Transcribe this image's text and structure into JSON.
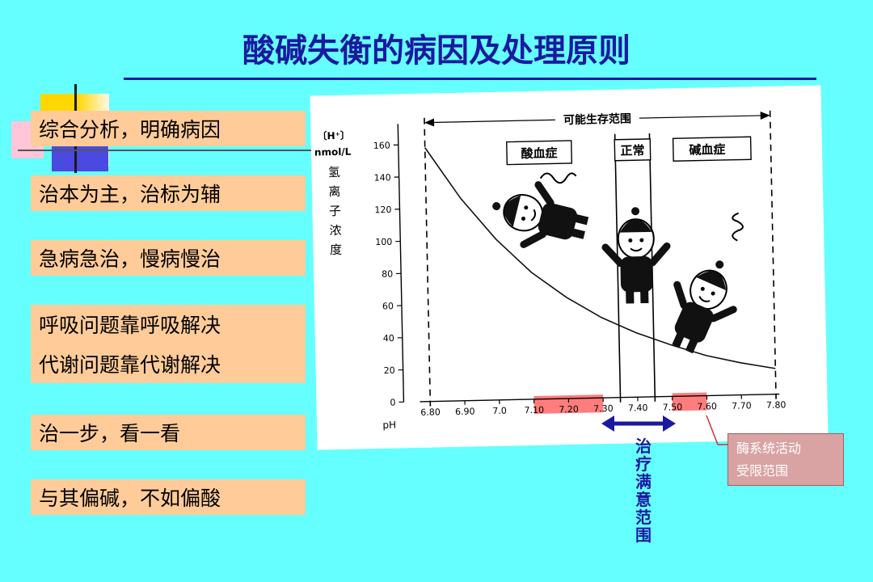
{
  "title": "酸碱失衡的病因及处理原则",
  "principles": [
    "综合分析，明确病因",
    "治本为主，治标为辅",
    "急病急治，慢病慢治",
    "呼吸问题靠呼吸解决",
    "代谢问题靠代谢解决",
    "治一步，看一看",
    "与其偏碱，不如偏酸"
  ],
  "callouts": {
    "treatment_range": [
      "治",
      "疗",
      "满",
      "意",
      "范",
      "围"
    ],
    "enzyme_range": [
      "酶系统活动",
      "受限范围"
    ]
  },
  "colors": {
    "accent": "#1a1aa0",
    "item_bg": "#ffcc99",
    "highlight": "#ff6666",
    "background": "#66ffff"
  },
  "chart_data": {
    "type": "line",
    "ylabel_lines": [
      "〔H⁺〕",
      "nmol/L",
      "氢",
      "离",
      "子",
      "浓",
      "度"
    ],
    "xlabel": "pH",
    "x_ticks": [
      "6.80",
      "6.90",
      "7.0",
      "7.10",
      "7.20",
      "7.30",
      "7.40",
      "7.50",
      "7.60",
      "7.70",
      "7.80"
    ],
    "x_tick_values": [
      6.8,
      6.9,
      7.0,
      7.1,
      7.2,
      7.3,
      7.4,
      7.5,
      7.6,
      7.7,
      7.8
    ],
    "y_ticks": [
      "0",
      "20",
      "40",
      "60",
      "80",
      "100",
      "120",
      "140",
      "160"
    ],
    "y_tick_values": [
      0,
      20,
      40,
      60,
      80,
      100,
      120,
      140,
      160
    ],
    "xlim": [
      6.77,
      7.85
    ],
    "ylim": [
      0,
      170
    ],
    "series": [
      {
        "x": [
          6.8,
          6.9,
          7.0,
          7.1,
          7.2,
          7.3,
          7.4,
          7.5,
          7.6,
          7.7,
          7.8
        ],
        "y": [
          158,
          126,
          100,
          79,
          63,
          50,
          40,
          32,
          25,
          20,
          16
        ]
      }
    ],
    "regions": {
      "survival_label": "可能生存范围",
      "survival_range": [
        6.8,
        7.8
      ],
      "acidosis_label": "酸血症",
      "normal_label": "正常",
      "normal_range": [
        7.35,
        7.45
      ],
      "alkalosis_label": "碱血症"
    },
    "highlight_ranges": [
      [
        7.1,
        7.3
      ],
      [
        7.5,
        7.6
      ]
    ],
    "treatment_arrow_range": [
      7.3,
      7.5
    ]
  }
}
